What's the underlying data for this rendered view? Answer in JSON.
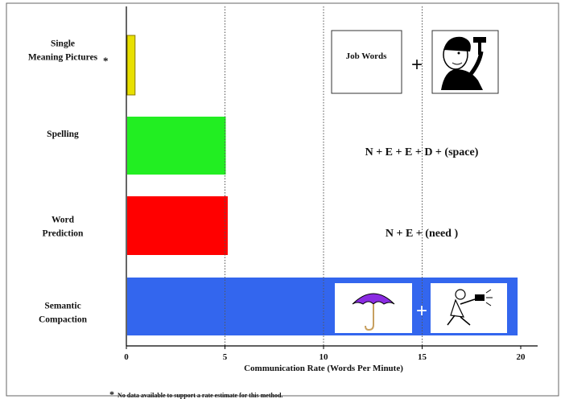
{
  "chart_data": {
    "type": "bar",
    "orientation": "horizontal",
    "categories": [
      [
        "Single",
        "Meaning Pictures"
      ],
      [
        "Spelling"
      ],
      [
        "Word",
        "Prediction"
      ],
      [
        "Semantic",
        "Compaction"
      ]
    ],
    "values": [
      0.4,
      5,
      5.1,
      19.8
    ],
    "colors": [
      "#e8e000",
      "#22ee22",
      "#ff0000",
      "#3366ee"
    ],
    "xlabel": "Communication Rate (Words Per Minute)",
    "xlim": [
      0,
      21
    ],
    "xticks": [
      0,
      5,
      10,
      15,
      20
    ],
    "reference_lines": [
      5,
      10,
      15
    ],
    "grid": false
  },
  "asterisk": "*",
  "footnote": "No data available to support a rate estimate for this method.",
  "examples": {
    "single_meaning": {
      "box_label": "Job Words",
      "plus": "+"
    },
    "spelling": "N + E + E + D + (space)",
    "word_prediction": "N + E + (need )",
    "semantic_compaction": {
      "plus": "+"
    }
  },
  "icons": [
    "job-words-box",
    "worker-hammer-icon",
    "umbrella-icon",
    "person-running-icon"
  ]
}
